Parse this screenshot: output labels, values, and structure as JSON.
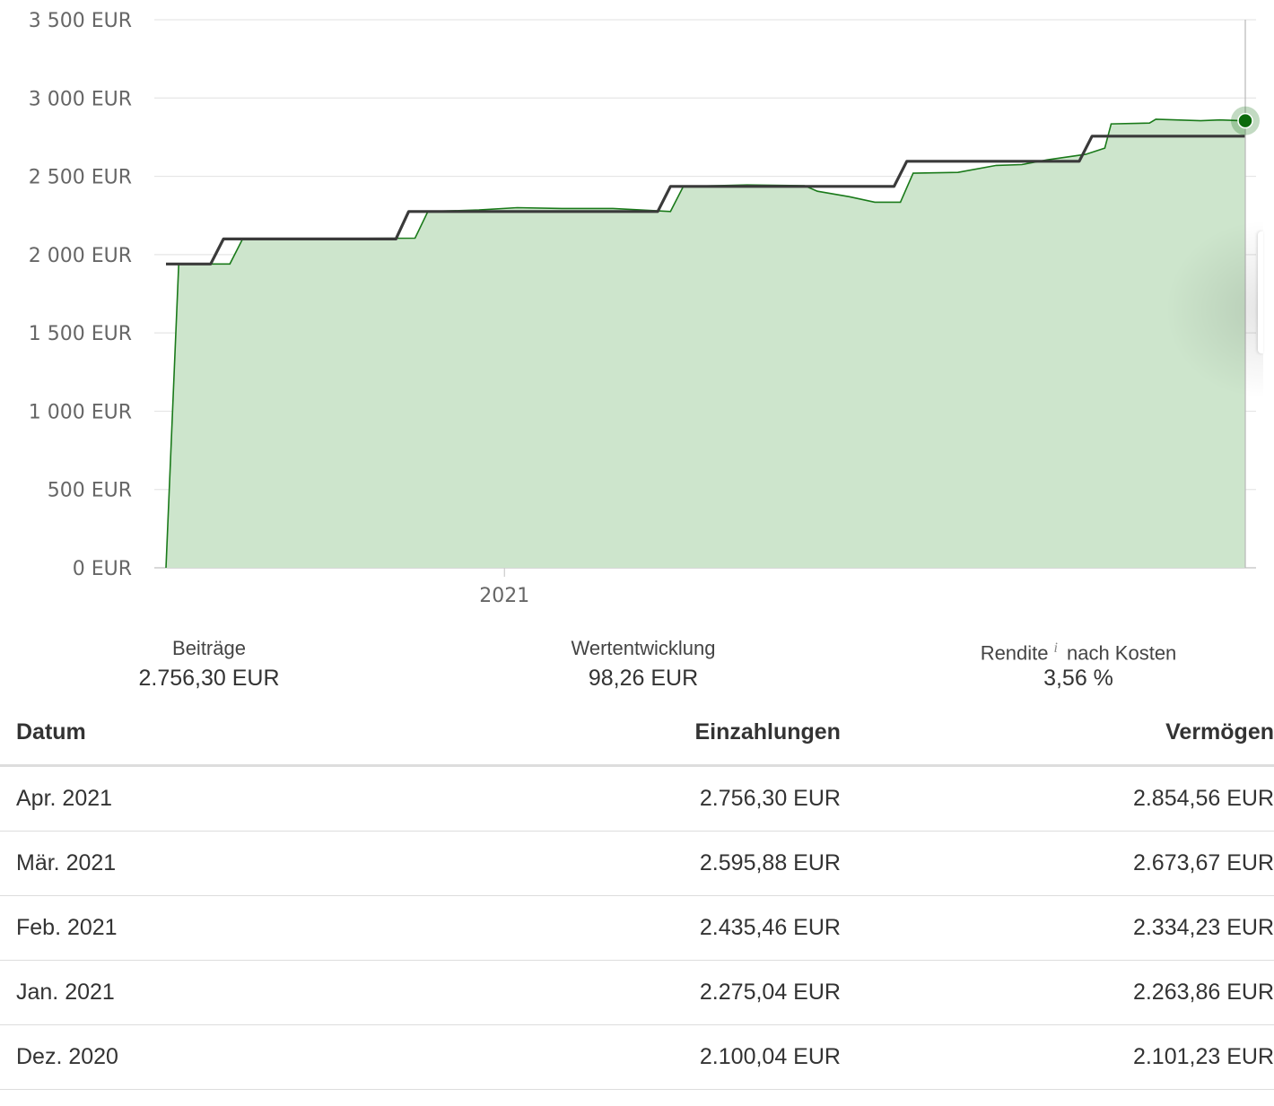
{
  "chart_data": {
    "type": "area",
    "y_unit": "EUR",
    "ylim": [
      0,
      3500
    ],
    "y_ticks": [
      {
        "value": 0,
        "label": "0 EUR"
      },
      {
        "value": 500,
        "label": "500 EUR"
      },
      {
        "value": 1000,
        "label": "1 000 EUR"
      },
      {
        "value": 1500,
        "label": "1 500 EUR"
      },
      {
        "value": 2000,
        "label": "2 000 EUR"
      },
      {
        "value": 2500,
        "label": "2 500 EUR"
      },
      {
        "value": 3000,
        "label": "3 000 EUR"
      },
      {
        "value": 3500,
        "label": "3 500 EUR"
      }
    ],
    "x_ticks": [
      {
        "date": "2021-01-01",
        "label": "2021"
      }
    ],
    "x_range": [
      "2020-11-09",
      "2021-04-27"
    ],
    "grid": true,
    "colors": {
      "area_fill": "#cde5cc",
      "area_line": "#1a7a1a",
      "step_line": "#3a3a3a",
      "marker": "#0b6a0b",
      "grid": "#e6e6e6"
    },
    "series": [
      {
        "type": "step",
        "points": [
          {
            "date": "2020-11-09",
            "value": 1940
          },
          {
            "date": "2020-11-16",
            "value": 1940
          },
          {
            "date": "2020-11-18",
            "value": 2100.04
          },
          {
            "date": "2020-12-15",
            "value": 2100.04
          },
          {
            "date": "2020-12-17",
            "value": 2275.04
          },
          {
            "date": "2021-01-25",
            "value": 2275.04
          },
          {
            "date": "2021-01-27",
            "value": 2435.46
          },
          {
            "date": "2021-03-03",
            "value": 2435.46
          },
          {
            "date": "2021-03-05",
            "value": 2595.88
          },
          {
            "date": "2021-04-01",
            "value": 2595.88
          },
          {
            "date": "2021-04-03",
            "value": 2756.3
          },
          {
            "date": "2021-04-27",
            "value": 2756.3
          }
        ]
      },
      {
        "type": "area",
        "points": [
          {
            "date": "2020-11-09",
            "value": 0
          },
          {
            "date": "2020-11-11",
            "value": 1940
          },
          {
            "date": "2020-11-19",
            "value": 1940
          },
          {
            "date": "2020-11-21",
            "value": 2100
          },
          {
            "date": "2020-12-18",
            "value": 2105
          },
          {
            "date": "2020-12-20",
            "value": 2275
          },
          {
            "date": "2020-12-28",
            "value": 2285
          },
          {
            "date": "2021-01-03",
            "value": 2300
          },
          {
            "date": "2021-01-10",
            "value": 2295
          },
          {
            "date": "2021-01-18",
            "value": 2295
          },
          {
            "date": "2021-01-27",
            "value": 2275
          },
          {
            "date": "2021-01-29",
            "value": 2435
          },
          {
            "date": "2021-02-08",
            "value": 2445
          },
          {
            "date": "2021-02-17",
            "value": 2440
          },
          {
            "date": "2021-02-19",
            "value": 2405
          },
          {
            "date": "2021-02-24",
            "value": 2370
          },
          {
            "date": "2021-02-28",
            "value": 2335
          },
          {
            "date": "2021-03-04",
            "value": 2335
          },
          {
            "date": "2021-03-06",
            "value": 2520
          },
          {
            "date": "2021-03-13",
            "value": 2525
          },
          {
            "date": "2021-03-19",
            "value": 2570
          },
          {
            "date": "2021-03-23",
            "value": 2575
          },
          {
            "date": "2021-03-27",
            "value": 2605
          },
          {
            "date": "2021-04-02",
            "value": 2640
          },
          {
            "date": "2021-04-05",
            "value": 2680
          },
          {
            "date": "2021-04-06",
            "value": 2835
          },
          {
            "date": "2021-04-12",
            "value": 2840
          },
          {
            "date": "2021-04-13",
            "value": 2865
          },
          {
            "date": "2021-04-20",
            "value": 2855
          },
          {
            "date": "2021-04-23",
            "value": 2860
          },
          {
            "date": "2021-04-27",
            "value": 2854.56
          }
        ]
      }
    ],
    "highlight_point": {
      "date": "2021-04-27",
      "value": 2854.56
    }
  },
  "summary": {
    "beitraege_label": "Beiträge",
    "beitraege_value": "2.756,30 EUR",
    "wert_label": "Wertentwicklung",
    "wert_value": "98,26 EUR",
    "rendite_label": "Rendite",
    "rendite_info": "i",
    "rendite_suffix": "nach Kosten",
    "rendite_value": "3,56 %"
  },
  "table": {
    "headers": {
      "datum": "Datum",
      "einzahlungen": "Einzahlungen",
      "vermoegen": "Vermögen"
    },
    "rows": [
      {
        "datum": "Apr. 2021",
        "einzahlungen": "2.756,30 EUR",
        "vermoegen": "2.854,56 EUR"
      },
      {
        "datum": "Mär. 2021",
        "einzahlungen": "2.595,88 EUR",
        "vermoegen": "2.673,67 EUR"
      },
      {
        "datum": "Feb. 2021",
        "einzahlungen": "2.435,46 EUR",
        "vermoegen": "2.334,23 EUR"
      },
      {
        "datum": "Jan. 2021",
        "einzahlungen": "2.275,04 EUR",
        "vermoegen": "2.263,86 EUR"
      },
      {
        "datum": "Dez. 2020",
        "einzahlungen": "2.100,04 EUR",
        "vermoegen": "2.101,23 EUR"
      }
    ]
  }
}
